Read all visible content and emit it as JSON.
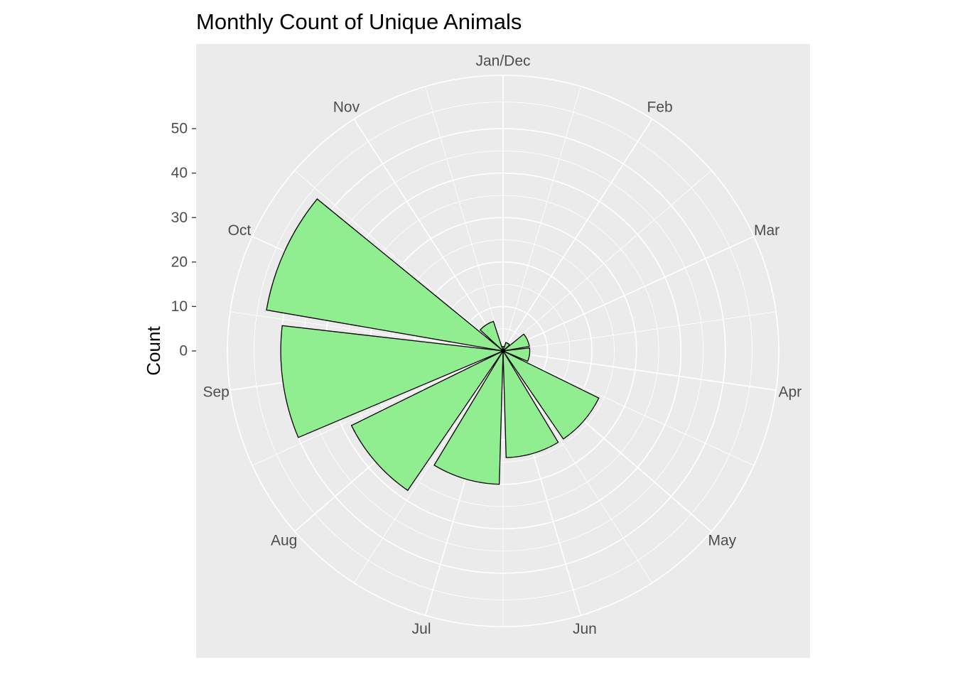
{
  "chart_data": {
    "type": "bar",
    "coord": "polar",
    "title": "Monthly Count of Unique Animals",
    "xlabel": "",
    "ylabel": "Count",
    "categories": [
      "Jan/Dec",
      "Feb",
      "Mar",
      "Apr",
      "May",
      "Jun",
      "Jul",
      "Aug",
      "Sep",
      "Oct",
      "Nov"
    ],
    "values": [
      1,
      2,
      6,
      6,
      24,
      24,
      30,
      38,
      50,
      54,
      7
    ],
    "y_ticks": [
      0,
      10,
      20,
      30,
      40,
      50
    ],
    "y_tick_labels": [
      "0",
      "10",
      "20",
      "30",
      "40",
      "50"
    ],
    "ylim": [
      0,
      62
    ],
    "grid": true,
    "legend": "none",
    "colors": {
      "bar_fill": "#90ee90",
      "bar_outline": "#000000",
      "panel_background": "#ebebeb",
      "gridline": "#ffffff",
      "text": "#4d4d4d"
    }
  }
}
